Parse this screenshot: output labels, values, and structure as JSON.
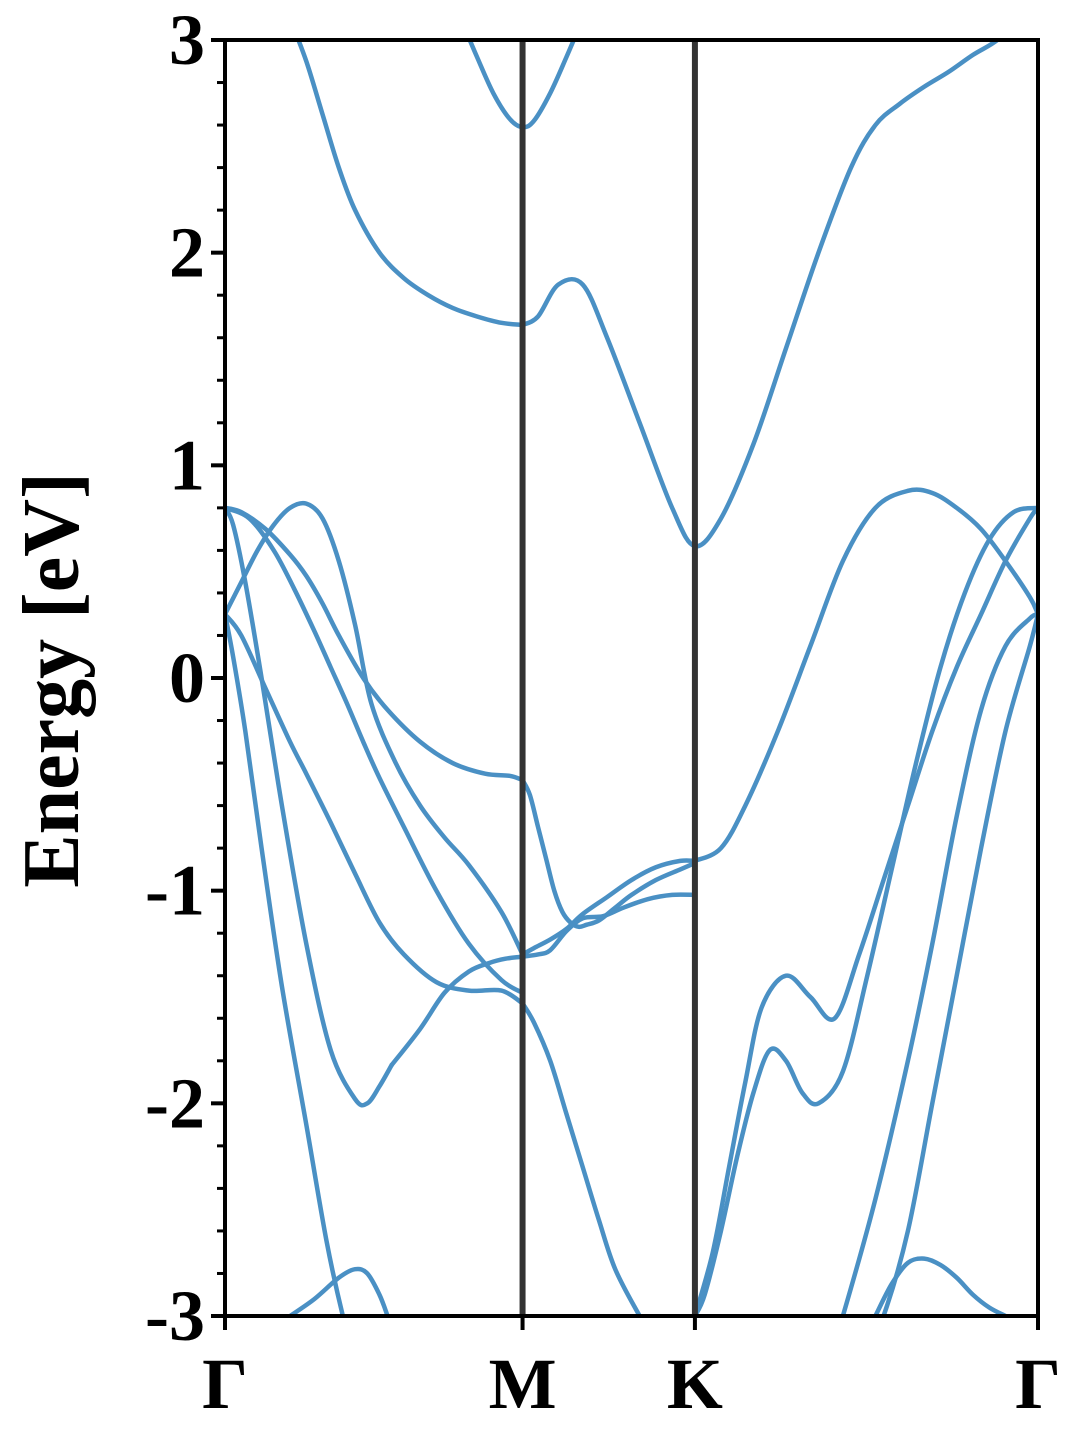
{
  "chart_data": {
    "type": "line",
    "ylabel": "Energy [eV]",
    "xlabel": "",
    "ylim": [
      -3,
      3
    ],
    "yticks": [
      "3",
      "2",
      "1",
      "0",
      "-1",
      "-2",
      "-3"
    ],
    "kpoint_labels": [
      "Γ",
      "M",
      "K",
      "Γ"
    ],
    "kpoint_positions": [
      0,
      0.366,
      0.578,
      1.0
    ],
    "grid": false,
    "legend": "none",
    "line_color": "#4a90c4",
    "kpath_line_color": "#333333",
    "series": [
      {
        "x": [
          0.0,
          0.01,
          0.025,
          0.045,
          0.07,
          0.1,
          0.125,
          0.145,
          0.16,
          0.175,
          0.185
        ],
        "y": [
          0.3,
          0.1,
          -0.25,
          -0.8,
          -1.45,
          -2.1,
          -2.65,
          -3.0,
          -3.2,
          -3.35,
          -3.45
        ]
      },
      {
        "x": [
          0.0,
          0.01,
          0.025,
          0.045,
          0.07,
          0.1,
          0.13,
          0.16,
          0.175,
          0.19,
          0.205
        ],
        "y": [
          0.8,
          0.72,
          0.45,
          0.0,
          -0.6,
          -1.25,
          -1.75,
          -1.98,
          -2.0,
          -1.92,
          -1.82
        ]
      },
      {
        "x": [
          0.205,
          0.24,
          0.27,
          0.3,
          0.325,
          0.345,
          0.366,
          0.385,
          0.4,
          0.42,
          0.44,
          0.465,
          0.49,
          0.52,
          0.55,
          0.578
        ],
        "y": [
          -1.82,
          -1.65,
          -1.48,
          -1.38,
          -1.34,
          -1.32,
          -1.31,
          -1.3,
          -1.28,
          -1.19,
          -1.13,
          -1.12,
          -1.08,
          -1.04,
          -1.02,
          -1.02
        ]
      },
      {
        "x": [
          0.0,
          0.02,
          0.05,
          0.08,
          0.1,
          0.13,
          0.16,
          0.19,
          0.22,
          0.26,
          0.3,
          0.34,
          0.366
        ],
        "y": [
          0.3,
          0.2,
          -0.05,
          -0.3,
          -0.45,
          -0.68,
          -0.92,
          -1.15,
          -1.3,
          -1.43,
          -1.47,
          -1.47,
          -1.53
        ]
      },
      {
        "x": [
          0.366,
          0.38,
          0.4,
          0.42,
          0.44,
          0.46,
          0.48,
          0.51,
          0.54,
          0.578
        ],
        "y": [
          -1.53,
          -1.62,
          -1.8,
          -2.05,
          -2.3,
          -2.55,
          -2.78,
          -3.0,
          -3.2,
          -3.4
        ]
      },
      {
        "x": [
          0.0,
          0.03,
          0.06,
          0.085,
          0.11,
          0.13,
          0.15,
          0.17,
          0.19,
          0.22,
          0.26,
          0.3,
          0.34,
          0.366
        ],
        "y": [
          0.8,
          0.75,
          0.6,
          0.42,
          0.22,
          0.05,
          -0.12,
          -0.3,
          -0.47,
          -0.7,
          -1.0,
          -1.25,
          -1.42,
          -1.48
        ]
      },
      {
        "x": [
          0.0,
          0.02,
          0.04,
          0.06,
          0.08,
          0.1,
          0.12,
          0.14,
          0.16,
          0.18,
          0.21,
          0.24,
          0.27,
          0.3,
          0.34,
          0.366
        ],
        "y": [
          0.3,
          0.45,
          0.6,
          0.72,
          0.8,
          0.82,
          0.75,
          0.55,
          0.25,
          -0.12,
          -0.4,
          -0.6,
          -0.75,
          -0.88,
          -1.1,
          -1.3
        ]
      },
      {
        "x": [
          0.366,
          0.38,
          0.4,
          0.42,
          0.44,
          0.47,
          0.5,
          0.53,
          0.56,
          0.578
        ],
        "y": [
          -1.3,
          -1.27,
          -1.23,
          -1.18,
          -1.11,
          -1.03,
          -0.95,
          -0.89,
          -0.86,
          -0.86
        ]
      },
      {
        "x": [
          0.578,
          0.61,
          0.64,
          0.68,
          0.72,
          0.76,
          0.8,
          0.84,
          0.87,
          0.9,
          0.93,
          0.96,
          0.99,
          1.0
        ],
        "y": [
          -0.86,
          -0.8,
          -0.6,
          -0.25,
          0.15,
          0.55,
          0.8,
          0.88,
          0.87,
          0.8,
          0.7,
          0.55,
          0.38,
          0.3
        ]
      },
      {
        "x": [
          0.0,
          0.02,
          0.05,
          0.08,
          0.1,
          0.12,
          0.14,
          0.17,
          0.2,
          0.24,
          0.28,
          0.32,
          0.35,
          0.366
        ],
        "y": [
          0.8,
          0.78,
          0.7,
          0.58,
          0.48,
          0.35,
          0.2,
          0.0,
          -0.15,
          -0.3,
          -0.4,
          -0.45,
          -0.46,
          -0.48
        ]
      },
      {
        "x": [
          0.366,
          0.375,
          0.385,
          0.395,
          0.405,
          0.415,
          0.425,
          0.435,
          0.445,
          0.46,
          0.48,
          0.5,
          0.53,
          0.56,
          0.578
        ],
        "y": [
          -0.48,
          -0.55,
          -0.7,
          -0.85,
          -1.0,
          -1.1,
          -1.15,
          -1.17,
          -1.16,
          -1.14,
          -1.08,
          -1.02,
          -0.95,
          -0.9,
          -0.87
        ]
      },
      {
        "x": [
          0.578,
          0.59,
          0.61,
          0.63,
          0.65,
          0.67,
          0.69,
          0.71,
          0.73,
          0.76,
          0.79,
          0.82,
          0.85,
          0.88,
          0.91,
          0.94,
          0.97,
          1.0
        ],
        "y": [
          -3.0,
          -2.9,
          -2.6,
          -2.25,
          -1.95,
          -1.75,
          -1.8,
          -1.95,
          -2.0,
          -1.85,
          -1.4,
          -0.9,
          -0.4,
          0.05,
          0.4,
          0.65,
          0.78,
          0.8
        ]
      },
      {
        "x": [
          0.578,
          0.6,
          0.62,
          0.64,
          0.66,
          0.69,
          0.72,
          0.75,
          0.78,
          0.81,
          0.84,
          0.87,
          0.9,
          0.93,
          0.96,
          0.99,
          1.0
        ],
        "y": [
          -3.0,
          -2.7,
          -2.3,
          -1.9,
          -1.55,
          -1.4,
          -1.5,
          -1.6,
          -1.3,
          -0.95,
          -0.6,
          -0.25,
          0.05,
          0.3,
          0.55,
          0.75,
          0.8
        ]
      },
      {
        "x": [
          0.72,
          0.76,
          0.8,
          0.84,
          0.87,
          0.9,
          0.93,
          0.96,
          0.99,
          1.0
        ],
        "y": [
          -3.5,
          -3.0,
          -2.45,
          -1.8,
          -1.25,
          -0.65,
          -0.15,
          0.15,
          0.28,
          0.3
        ]
      },
      {
        "x": [
          0.785,
          0.81,
          0.84,
          0.87,
          0.9,
          0.93,
          0.96,
          0.99,
          1.0
        ],
        "y": [
          -3.2,
          -3.0,
          -2.6,
          -2.0,
          -1.4,
          -0.8,
          -0.25,
          0.15,
          0.3
        ]
      },
      {
        "x": [
          0.366,
          0.385,
          0.41,
          0.44,
          0.47,
          0.51,
          0.55,
          0.578,
          0.61,
          0.65,
          0.69,
          0.73,
          0.77,
          0.8,
          0.83,
          0.86,
          0.89,
          0.92,
          0.95,
          0.975
        ],
        "y": [
          1.66,
          1.7,
          1.85,
          1.85,
          1.6,
          1.2,
          0.8,
          0.62,
          0.75,
          1.1,
          1.55,
          2.0,
          2.4,
          2.6,
          2.7,
          2.78,
          2.85,
          2.93,
          3.0,
          3.1
        ]
      },
      {
        "x": [
          0.08,
          0.1,
          0.12,
          0.14,
          0.16,
          0.19,
          0.22,
          0.25,
          0.28,
          0.31,
          0.34,
          0.366
        ],
        "y": [
          3.1,
          2.9,
          2.65,
          2.4,
          2.2,
          2.0,
          1.88,
          1.8,
          1.74,
          1.7,
          1.67,
          1.66
        ]
      },
      {
        "x": [
          0.29,
          0.31,
          0.33,
          0.35,
          0.366,
          0.38,
          0.4,
          0.42,
          0.44
        ],
        "y": [
          3.1,
          2.92,
          2.75,
          2.63,
          2.59,
          2.62,
          2.75,
          2.92,
          3.1
        ]
      },
      {
        "x": [
          0.08,
          0.11,
          0.14,
          0.16,
          0.175,
          0.19,
          0.2
        ],
        "y": [
          -3.0,
          -2.92,
          -2.82,
          -2.78,
          -2.8,
          -2.9,
          -3.0
        ]
      },
      {
        "x": [
          0.8,
          0.82,
          0.84,
          0.86,
          0.88,
          0.9,
          0.92,
          0.94,
          0.96
        ],
        "y": [
          -3.0,
          -2.85,
          -2.75,
          -2.73,
          -2.76,
          -2.82,
          -2.9,
          -2.96,
          -3.0
        ]
      }
    ]
  }
}
